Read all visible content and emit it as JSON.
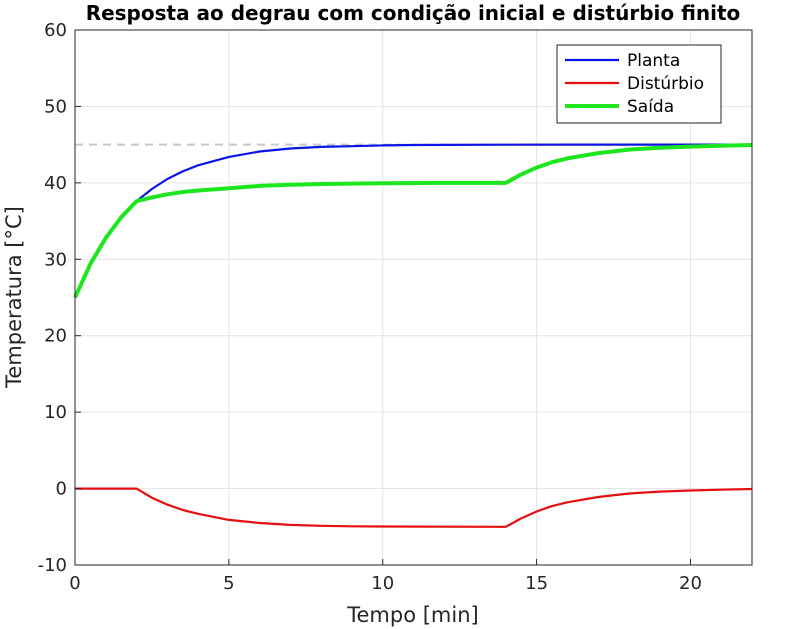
{
  "chart_data": {
    "type": "line",
    "title": "Resposta ao degrau com condição inicial e distúrbio finito",
    "xlabel": "Tempo [min]",
    "ylabel": "Temperatura [°C]",
    "xlim": [
      0,
      22
    ],
    "ylim": [
      -10,
      60
    ],
    "xticks": [
      0,
      5,
      10,
      15,
      20
    ],
    "yticks": [
      -10,
      0,
      10,
      20,
      30,
      40,
      50,
      60
    ],
    "grid": true,
    "legend_position": "top-right",
    "reference_line": {
      "y": 45,
      "style": "dashed",
      "color": "#c8c8c8"
    },
    "series": [
      {
        "name": "Planta",
        "color": "#0a14e6",
        "x": [
          0,
          0.5,
          1,
          1.5,
          2,
          2.5,
          3,
          3.5,
          4,
          5,
          6,
          7,
          8,
          9,
          10,
          11,
          12,
          14,
          16,
          18,
          20,
          22
        ],
        "y": [
          25,
          29.4,
          32.8,
          35.5,
          37.6,
          39.2,
          40.5,
          41.5,
          42.3,
          43.4,
          44.1,
          44.5,
          44.7,
          44.8,
          44.9,
          44.95,
          44.97,
          44.99,
          45.0,
          45.0,
          45.0,
          45.0
        ]
      },
      {
        "name": "Distúrbio",
        "color": "#e60f0f",
        "x": [
          0,
          1,
          2,
          2.5,
          3,
          3.5,
          4,
          5,
          6,
          7,
          8,
          9,
          10,
          12,
          14,
          14.5,
          15,
          15.5,
          16,
          17,
          18,
          19,
          20,
          21,
          22
        ],
        "y": [
          0,
          0,
          0,
          -1.2,
          -2.1,
          -2.8,
          -3.3,
          -4.1,
          -4.5,
          -4.75,
          -4.87,
          -4.93,
          -4.96,
          -4.99,
          -5.0,
          -3.9,
          -3.0,
          -2.3,
          -1.8,
          -1.1,
          -0.65,
          -0.4,
          -0.25,
          -0.15,
          -0.05
        ]
      },
      {
        "name": "Saída",
        "color": "#1ee61e",
        "x": [
          0,
          0.5,
          1,
          1.5,
          2,
          2.5,
          3,
          3.5,
          4,
          5,
          6,
          7,
          8,
          9,
          10,
          12,
          14,
          14.5,
          15,
          15.5,
          16,
          17,
          18,
          19,
          20,
          21,
          22
        ],
        "y": [
          25,
          29.4,
          32.8,
          35.5,
          37.6,
          38.1,
          38.5,
          38.8,
          39.0,
          39.3,
          39.6,
          39.75,
          39.85,
          39.9,
          39.95,
          39.99,
          40.0,
          41.1,
          42.0,
          42.7,
          43.2,
          43.9,
          44.35,
          44.6,
          44.75,
          44.85,
          44.95
        ]
      }
    ]
  }
}
